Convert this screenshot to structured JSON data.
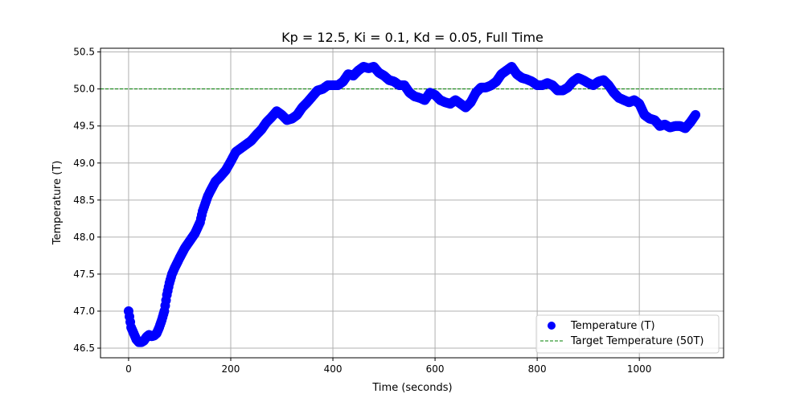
{
  "chart_data": {
    "type": "scatter",
    "title": "Kp = 12.5, Ki = 0.1, Kd = 0.05, Full Time",
    "xlabel": "Time (seconds)",
    "ylabel": "Temperature (T)",
    "xlim": [
      -55,
      1165
    ],
    "ylim": [
      46.37,
      50.55
    ],
    "xticks": [
      0,
      200,
      400,
      600,
      800,
      1000
    ],
    "yticks": [
      46.5,
      47.0,
      47.5,
      48.0,
      48.5,
      49.0,
      49.5,
      50.0,
      50.5
    ],
    "xtick_labels": [
      "0",
      "200",
      "400",
      "600",
      "800",
      "1000"
    ],
    "ytick_labels": [
      "46.5",
      "47.0",
      "47.5",
      "48.0",
      "48.5",
      "49.0",
      "49.5",
      "50.0",
      "50.5"
    ],
    "grid": true,
    "legend_position": "lower-right",
    "series": [
      {
        "name": "Temperature (T)",
        "kind": "scatter",
        "color": "#0000ff",
        "x": [
          0,
          5,
          10,
          15,
          20,
          25,
          30,
          35,
          40,
          45,
          50,
          55,
          60,
          65,
          70,
          75,
          80,
          85,
          90,
          95,
          100,
          110,
          120,
          130,
          140,
          145,
          150,
          155,
          160,
          170,
          180,
          190,
          200,
          210,
          220,
          230,
          240,
          250,
          260,
          270,
          280,
          290,
          300,
          310,
          320,
          330,
          340,
          350,
          360,
          370,
          380,
          390,
          400,
          410,
          420,
          430,
          440,
          450,
          460,
          470,
          480,
          490,
          500,
          510,
          520,
          530,
          540,
          550,
          560,
          570,
          580,
          590,
          600,
          610,
          620,
          630,
          640,
          650,
          660,
          670,
          680,
          690,
          700,
          710,
          720,
          730,
          740,
          750,
          760,
          770,
          780,
          790,
          800,
          810,
          820,
          830,
          840,
          850,
          860,
          870,
          880,
          890,
          900,
          910,
          920,
          930,
          940,
          950,
          960,
          970,
          980,
          990,
          1000,
          1010,
          1020,
          1030,
          1040,
          1050,
          1060,
          1070,
          1080,
          1090,
          1100,
          1110
        ],
        "y": [
          47.0,
          46.78,
          46.7,
          46.62,
          46.58,
          46.58,
          46.6,
          46.65,
          46.68,
          46.66,
          46.67,
          46.7,
          46.78,
          46.88,
          47.0,
          47.22,
          47.38,
          47.5,
          47.58,
          47.65,
          47.72,
          47.85,
          47.95,
          48.05,
          48.2,
          48.35,
          48.45,
          48.55,
          48.62,
          48.75,
          48.82,
          48.9,
          49.02,
          49.15,
          49.2,
          49.25,
          49.3,
          49.38,
          49.45,
          49.55,
          49.62,
          49.7,
          49.65,
          49.58,
          49.6,
          49.65,
          49.75,
          49.82,
          49.9,
          49.98,
          50.0,
          50.05,
          50.05,
          50.05,
          50.1,
          50.2,
          50.18,
          50.25,
          50.3,
          50.28,
          50.3,
          50.22,
          50.18,
          50.12,
          50.1,
          50.05,
          50.05,
          49.95,
          49.9,
          49.88,
          49.85,
          49.95,
          49.92,
          49.85,
          49.82,
          49.8,
          49.85,
          49.8,
          49.75,
          49.82,
          49.95,
          50.02,
          50.02,
          50.05,
          50.1,
          50.2,
          50.25,
          50.3,
          50.2,
          50.15,
          50.13,
          50.1,
          50.05,
          50.05,
          50.08,
          50.05,
          49.98,
          49.98,
          50.02,
          50.1,
          50.15,
          50.12,
          50.08,
          50.05,
          50.1,
          50.12,
          50.05,
          49.95,
          49.88,
          49.85,
          49.82,
          49.85,
          49.8,
          49.65,
          49.6,
          49.58,
          49.5,
          49.52,
          49.48,
          49.5,
          49.5,
          49.47,
          49.55,
          49.65
        ]
      },
      {
        "name": "Target Temperature (50T)",
        "kind": "hline",
        "y": 50.0,
        "color": "#008000"
      }
    ]
  }
}
